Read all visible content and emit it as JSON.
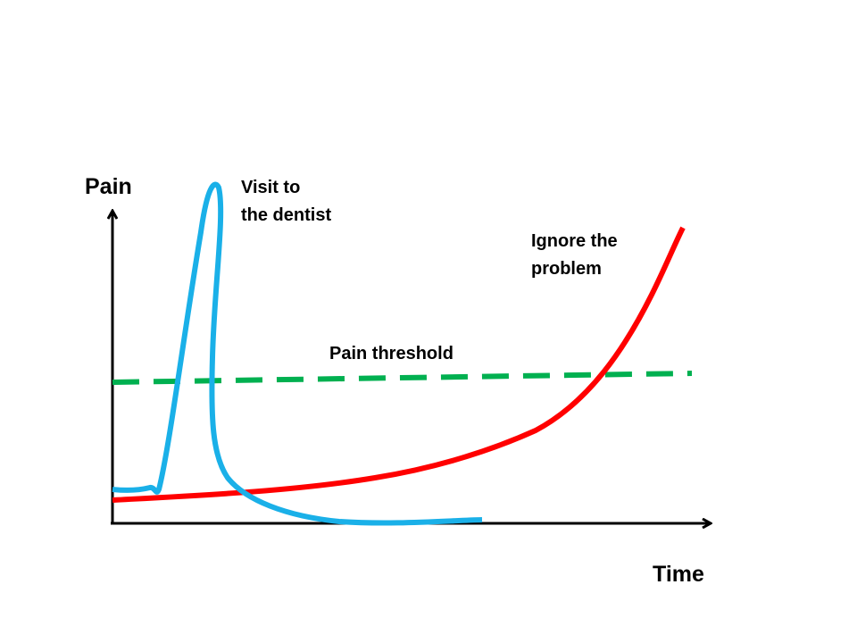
{
  "axes": {
    "y_label": "Pain",
    "x_label": "Time"
  },
  "annotations": {
    "dentist": [
      "Visit to",
      "the dentist"
    ],
    "ignore": [
      "Ignore the",
      "problem"
    ],
    "threshold": "Pain threshold"
  }
}
